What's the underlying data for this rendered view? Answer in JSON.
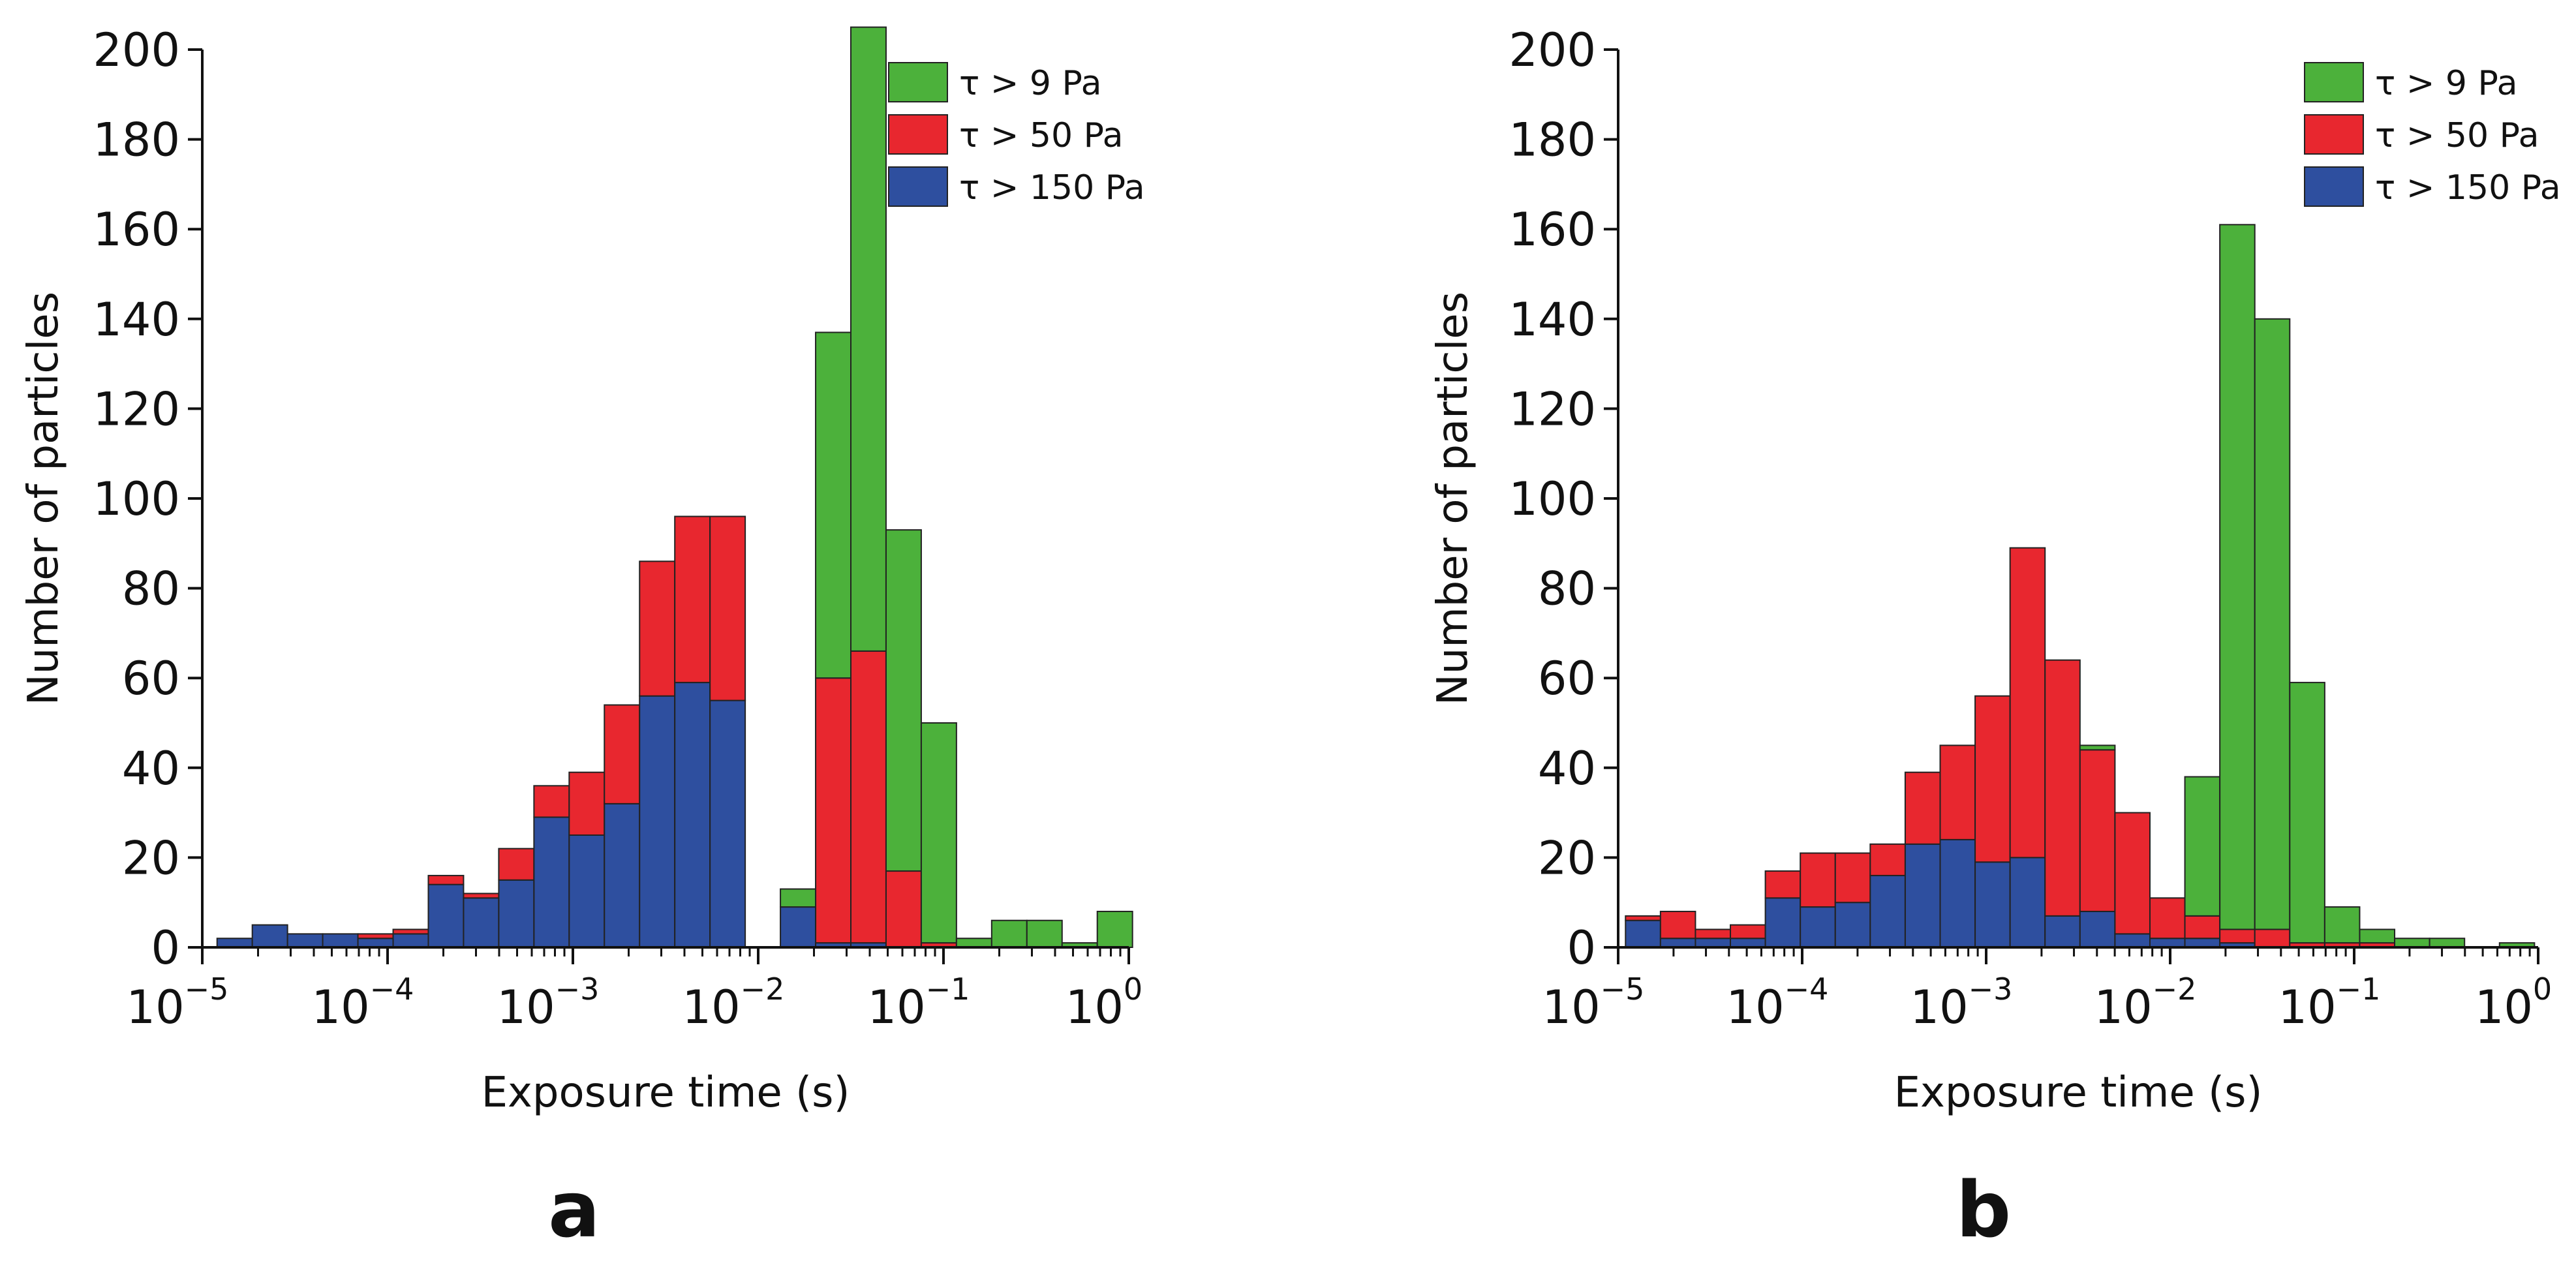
{
  "chart_data": [
    {
      "type": "bar",
      "panel_label": "a",
      "xlabel": "Exposure time (s)",
      "ylabel": "Number of particles",
      "xscale": "log",
      "xlim": [
        1e-05,
        1
      ],
      "ylim": [
        0,
        200
      ],
      "yticks": [
        "0",
        "20",
        "40",
        "60",
        "80",
        "100",
        "120",
        "140",
        "160",
        "180",
        "200"
      ],
      "xticks": [
        {
          "base": "10",
          "exp": "−5"
        },
        {
          "base": "10",
          "exp": "−4"
        },
        {
          "base": "10",
          "exp": "−3"
        },
        {
          "base": "10",
          "exp": "−2"
        },
        {
          "base": "10",
          "exp": "−1"
        },
        {
          "base": "10",
          "exp": "0"
        }
      ],
      "legend_position": "top-right",
      "series": [
        {
          "name": "τ > 9 Pa",
          "color": "#4cb13b",
          "values": [
            0,
            0,
            0,
            0,
            0,
            0,
            0,
            0,
            0,
            0,
            0,
            0,
            0,
            0,
            0,
            0,
            4,
            77,
            139,
            76,
            49,
            2,
            6,
            6,
            1,
            8
          ]
        },
        {
          "name": "τ > 50 Pa",
          "color": "#e8272f",
          "values": [
            0,
            0,
            0,
            0,
            1,
            1,
            2,
            1,
            7,
            7,
            14,
            22,
            30,
            37,
            41,
            0,
            0,
            59,
            65,
            17,
            1,
            0,
            0,
            0,
            0,
            0
          ]
        },
        {
          "name": "τ > 150 Pa",
          "color": "#2e4f9f",
          "values": [
            2,
            5,
            3,
            3,
            2,
            3,
            14,
            11,
            15,
            29,
            25,
            32,
            56,
            59,
            55,
            0,
            9,
            1,
            1,
            0,
            0,
            0,
            0,
            0,
            0,
            0
          ]
        }
      ],
      "bin_edges_log10": [
        -4.92,
        -4.73,
        -4.54,
        -4.35,
        -4.16,
        -3.97,
        -3.78,
        -3.59,
        -3.4,
        -3.21,
        -3.02,
        -2.83,
        -2.64,
        -2.45,
        -2.26,
        -2.07,
        -1.88,
        -1.69,
        -1.5,
        -1.31,
        -1.12,
        -0.93,
        -0.74,
        -0.55,
        -0.36,
        -0.17,
        0.02
      ]
    },
    {
      "type": "bar",
      "panel_label": "b",
      "xlabel": "Exposure time (s)",
      "ylabel": "Number of particles",
      "xscale": "log",
      "xlim": [
        1e-05,
        1
      ],
      "ylim": [
        0,
        200
      ],
      "yticks": [
        "0",
        "20",
        "40",
        "60",
        "80",
        "100",
        "120",
        "140",
        "160",
        "180",
        "200"
      ],
      "xticks": [
        {
          "base": "10",
          "exp": "−5"
        },
        {
          "base": "10",
          "exp": "−4"
        },
        {
          "base": "10",
          "exp": "−3"
        },
        {
          "base": "10",
          "exp": "−2"
        },
        {
          "base": "10",
          "exp": "−1"
        },
        {
          "base": "10",
          "exp": "0"
        }
      ],
      "legend_position": "top-right",
      "series": [
        {
          "name": "τ > 9 Pa",
          "color": "#4cb13b",
          "values": [
            0,
            0,
            0,
            0,
            0,
            0,
            0,
            0,
            0,
            0,
            0,
            0,
            0,
            1,
            0,
            0,
            31,
            157,
            136,
            58,
            8,
            3,
            2,
            2,
            0,
            1
          ]
        },
        {
          "name": "τ > 50 Pa",
          "color": "#e8272f",
          "values": [
            1,
            6,
            2,
            3,
            6,
            12,
            11,
            7,
            16,
            21,
            37,
            69,
            57,
            36,
            27,
            9,
            5,
            3,
            4,
            1,
            1,
            1,
            0,
            0,
            0,
            0
          ]
        },
        {
          "name": "τ > 150 Pa",
          "color": "#2e4f9f",
          "values": [
            6,
            2,
            2,
            2,
            11,
            9,
            10,
            16,
            23,
            24,
            19,
            20,
            7,
            8,
            3,
            2,
            2,
            1,
            0,
            0,
            0,
            0,
            0,
            0,
            0,
            0
          ]
        }
      ],
      "bin_edges_log10": [
        -4.96,
        -4.77,
        -4.58,
        -4.39,
        -4.2,
        -4.01,
        -3.82,
        -3.63,
        -3.44,
        -3.25,
        -3.06,
        -2.87,
        -2.68,
        -2.49,
        -2.3,
        -2.11,
        -1.92,
        -1.73,
        -1.54,
        -1.35,
        -1.16,
        -0.97,
        -0.78,
        -0.59,
        -0.4,
        -0.21,
        -0.02
      ]
    }
  ]
}
